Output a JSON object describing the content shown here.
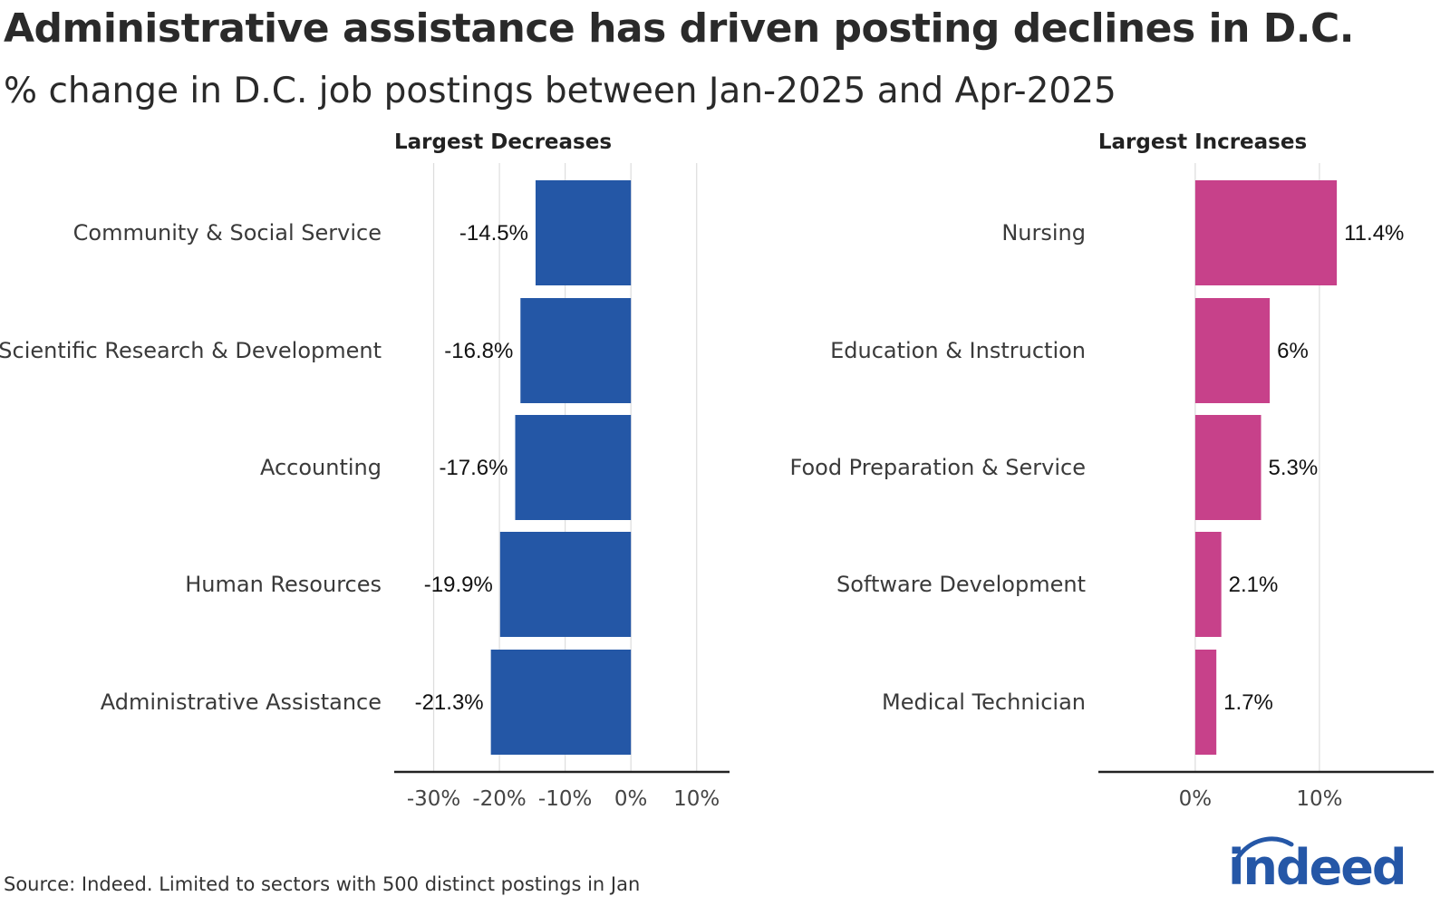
{
  "header": {
    "title": "Administrative assistance has driven posting declines in D.C.",
    "subtitle": "% change in D.C. job postings between Jan-2025 and Apr-2025"
  },
  "footer": {
    "source": "Source: Indeed. Limited to sectors with 500 distinct postings in Jan",
    "logo_text": "indeed"
  },
  "colors": {
    "decrease": "#2457a6",
    "increase": "#c7418a",
    "grid": "#dddddd",
    "axis": "#222222",
    "logo": "#2557a7"
  },
  "chart_data": [
    {
      "type": "bar",
      "orientation": "horizontal",
      "facet_title": "Largest Decreases",
      "categories": [
        "Community & Social Service",
        "Scientific Research & Development",
        "Accounting",
        "Human Resources",
        "Administrative Assistance"
      ],
      "values": [
        -14.5,
        -16.8,
        -17.6,
        -19.9,
        -21.3
      ],
      "value_labels": [
        "-14.5%",
        "-16.8%",
        "-17.6%",
        "-19.9%",
        "-21.3%"
      ],
      "xlim": [
        -36,
        15
      ],
      "ticks": [
        -30,
        -20,
        -10,
        0,
        10
      ],
      "tick_labels": [
        "-30%",
        "-20%",
        "-10%",
        "0%",
        "10%"
      ],
      "color": "#2457a6",
      "grid": true
    },
    {
      "type": "bar",
      "orientation": "horizontal",
      "facet_title": "Largest Increases",
      "categories": [
        "Nursing",
        "Education & Instruction",
        "Food Preparation & Service",
        "Software Development",
        "Medical Technician"
      ],
      "values": [
        11.4,
        6,
        5.3,
        2.1,
        1.7
      ],
      "value_labels": [
        "11.4%",
        "6%",
        "5.3%",
        "2.1%",
        "1.7%"
      ],
      "xlim": [
        -7.8,
        19.2
      ],
      "ticks": [
        0,
        10
      ],
      "tick_labels": [
        "0%",
        "10%"
      ],
      "color": "#c7418a",
      "grid": true
    }
  ]
}
